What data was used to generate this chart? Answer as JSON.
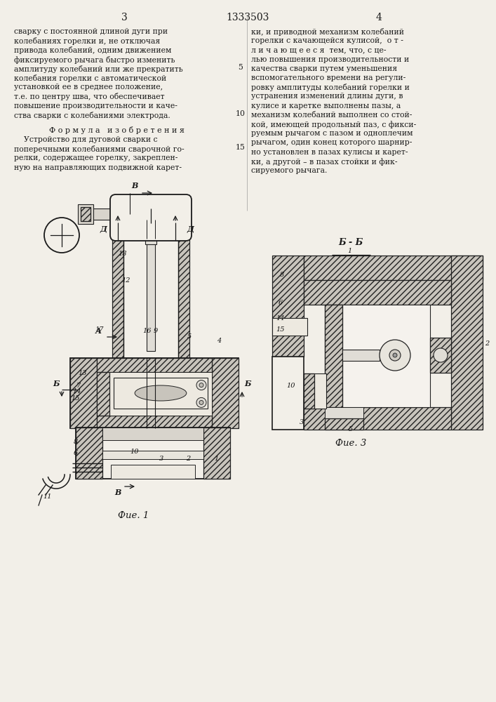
{
  "bg_color": "#f2efe8",
  "line_color": "#1a1a1a",
  "hatch_color": "#222222",
  "hatch_fc": "#c8c4bc",
  "body_fc": "#f2efe8",
  "header_center": "1333503",
  "page_left": "3",
  "page_right": "4",
  "col1_lines": [
    "сварку с постоянной длиной дуги при",
    "колебаниях горелки и, не отключая",
    "привода колебаний, одним движением",
    "фиксируемого рычага быстро изменить",
    "амплитуду колебаний или же прекратить",
    "колебания горелки с автоматической",
    "установкой ее в среднее положение,",
    "т.е. по центру шва, что обеспечивает",
    "повышение производительности и каче-",
    "ства сварки с колебаниями электрода."
  ],
  "formula_title": "Ф о р м у л а   и з о б р е т е н и я",
  "formula_lines": [
    "    Устройство для дуговой сварки с",
    "поперечными колебаниями сварочной го-",
    "релки, содержащее горелку, закреплен-",
    "ную на направляющих подвижной карет-"
  ],
  "col2_lines": [
    "ки, и приводной механизм колебаний",
    "горелки с качающейся кулисой,  о т -",
    "л и ч а ю щ е е с я  тем, что, с це-",
    "лью повышения производительности и",
    "качества сварки путем уменьшения",
    "вспомогательного времени на регули-",
    "ровку амплитуды колебаний горелки и",
    "устранения изменений длины дуги, в",
    "кулисе и каретке выполнены пазы, а",
    "механизм колебаний выполнен со стой-",
    "кой, имеющей продольный паз, с фикси-",
    "руемым рычагом с пазом и одноплечим",
    "рычагом, один конец которого шарнир-",
    "но установлен в пазах кулисы и карет-",
    "ки, а другой – в пазах стойки и фик-",
    "сируемого рычага."
  ],
  "fig1_label": "Фие. 1",
  "fig3_label": "Фие. 3",
  "bb_label": "Б - Б",
  "font_body": 7.8,
  "font_label": 9.5
}
